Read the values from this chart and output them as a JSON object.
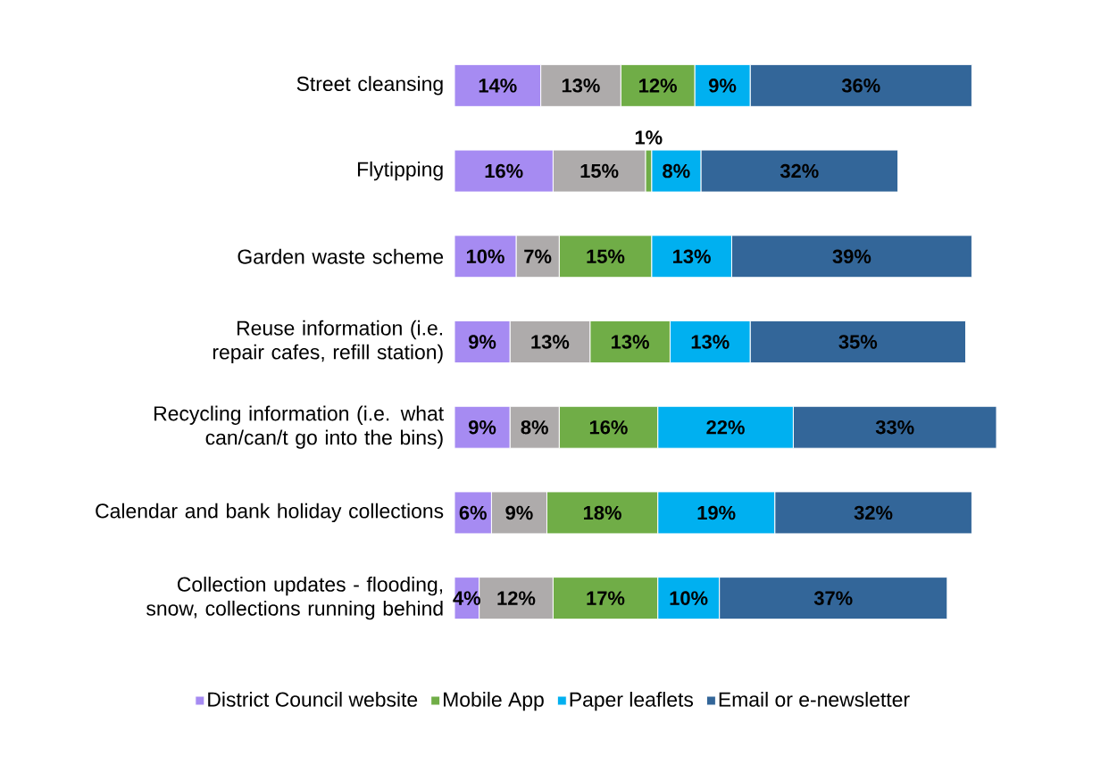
{
  "chart_data": {
    "type": "bar",
    "orientation": "horizontal",
    "stacked": true,
    "legend": "bottom",
    "categories": [
      "Street cleansing",
      "Flytipping",
      "Garden waste scheme",
      "Reuse information (i.e. repair cafes, refill station)",
      "Recycling information (i.e. what can/can/t go into the bins)",
      "Calendar and bank holiday collections",
      "Collection updates - flooding, snow, collections running behind"
    ],
    "series": [
      {
        "name": "District Council website",
        "color": "#a68bf2",
        "values": [
          14,
          16,
          10,
          9,
          9,
          6,
          4
        ],
        "value_labels": [
          "14%",
          "16%",
          "10%",
          "9%",
          "9%",
          "6%",
          "4%"
        ]
      },
      {
        "color": "#aeabab",
        "values": [
          13,
          15,
          7,
          13,
          8,
          9,
          12
        ],
        "value_labels": [
          "13%",
          "15%",
          "7%",
          "13%",
          "8%",
          "9%",
          "12%"
        ]
      },
      {
        "name": "Mobile App",
        "color": "#70ad47",
        "values": [
          12,
          1,
          15,
          13,
          16,
          18,
          17
        ],
        "value_labels": [
          "12%",
          "1%",
          "15%",
          "13%",
          "16%",
          "18%",
          "17%"
        ]
      },
      {
        "name": "Paper leaflets",
        "color": "#00b0f0",
        "values": [
          9,
          8,
          13,
          13,
          22,
          19,
          10
        ],
        "value_labels": [
          "9%",
          "8%",
          "13%",
          "13%",
          "22%",
          "19%",
          "10%"
        ]
      },
      {
        "name": "Email or e-newsletter",
        "color": "#336699",
        "values": [
          36,
          32,
          39,
          35,
          33,
          32,
          37
        ],
        "value_labels": [
          "36%",
          "32%",
          "39%",
          "35%",
          "33%",
          "32%",
          "37%"
        ]
      }
    ]
  }
}
